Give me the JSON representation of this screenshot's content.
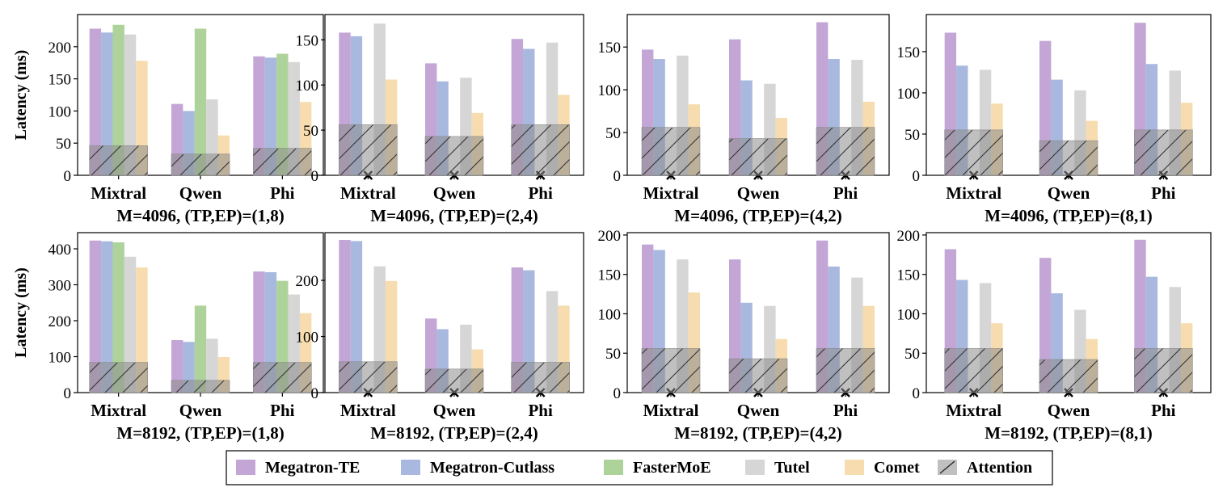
{
  "colors": {
    "Megatron-TE": "#c3a6d6",
    "Megatron-Cutlass": "#a8b8de",
    "FasterMoE": "#aed39a",
    "Tutel": "#d6d6d6",
    "Comet": "#f6dcae",
    "Attention": "#8c8c8c"
  },
  "legend": [
    "Megatron-TE",
    "Megatron-Cutlass",
    "FasterMoE",
    "Tutel",
    "Comet",
    "Attention"
  ],
  "unsupported_marker": "×",
  "chart_data": [
    {
      "type": "bar",
      "xlabel": "M=4096, (TP,EP)=(1,8)",
      "ylabel": "Latency (ms)",
      "ylim": [
        0,
        250
      ],
      "yticks": [
        0,
        50,
        100,
        150,
        200
      ],
      "categories": [
        "Mixtral",
        "Qwen",
        "Phi"
      ],
      "series": [
        {
          "name": "Megatron-TE",
          "values": [
            228,
            111,
            185
          ]
        },
        {
          "name": "Megatron-Cutlass",
          "values": [
            222,
            100,
            183
          ]
        },
        {
          "name": "FasterMoE",
          "values": [
            234,
            228,
            189
          ]
        },
        {
          "name": "Tutel",
          "values": [
            219,
            118,
            176
          ]
        },
        {
          "name": "Comet",
          "values": [
            178,
            62,
            114
          ]
        }
      ],
      "attention": [
        46,
        33,
        42
      ]
    },
    {
      "type": "bar",
      "xlabel": "M=4096, (TP,EP)=(2,4)",
      "ylabel": "",
      "ylim": [
        0,
        178
      ],
      "yticks": [
        0,
        50,
        100,
        150
      ],
      "categories": [
        "Mixtral",
        "Qwen",
        "Phi"
      ],
      "series": [
        {
          "name": "Megatron-TE",
          "values": [
            158,
            124,
            151
          ]
        },
        {
          "name": "Megatron-Cutlass",
          "values": [
            154,
            104,
            140
          ]
        },
        {
          "name": "FasterMoE",
          "values": [
            null,
            null,
            null
          ]
        },
        {
          "name": "Tutel",
          "values": [
            168,
            108,
            147
          ]
        },
        {
          "name": "Comet",
          "values": [
            106,
            69,
            89
          ]
        }
      ],
      "attention": [
        56,
        43,
        56
      ]
    },
    {
      "type": "bar",
      "xlabel": "M=4096, (TP,EP)=(4,2)",
      "ylabel": "",
      "ylim": [
        0,
        188
      ],
      "yticks": [
        0,
        50,
        100,
        150
      ],
      "categories": [
        "Mixtral",
        "Qwen",
        "Phi"
      ],
      "series": [
        {
          "name": "Megatron-TE",
          "values": [
            147,
            159,
            179
          ]
        },
        {
          "name": "Megatron-Cutlass",
          "values": [
            136,
            111,
            136
          ]
        },
        {
          "name": "FasterMoE",
          "values": [
            null,
            null,
            null
          ]
        },
        {
          "name": "Tutel",
          "values": [
            140,
            107,
            135
          ]
        },
        {
          "name": "Comet",
          "values": [
            83,
            67,
            86
          ]
        }
      ],
      "attention": [
        56,
        43,
        56
      ]
    },
    {
      "type": "bar",
      "xlabel": "M=4096, (TP,EP)=(8,1)",
      "ylabel": "",
      "ylim": [
        0,
        195
      ],
      "yticks": [
        0,
        50,
        100,
        150
      ],
      "categories": [
        "Mixtral",
        "Qwen",
        "Phi"
      ],
      "series": [
        {
          "name": "Megatron-TE",
          "values": [
            173,
            163,
            185
          ]
        },
        {
          "name": "Megatron-Cutlass",
          "values": [
            133,
            116,
            135
          ]
        },
        {
          "name": "FasterMoE",
          "values": [
            null,
            null,
            null
          ]
        },
        {
          "name": "Tutel",
          "values": [
            128,
            103,
            127
          ]
        },
        {
          "name": "Comet",
          "values": [
            87,
            66,
            88
          ]
        }
      ],
      "attention": [
        55,
        42,
        55
      ]
    },
    {
      "type": "bar",
      "xlabel": "M=8192, (TP,EP)=(1,8)",
      "ylabel": "Latency (ms)",
      "ylim": [
        0,
        445
      ],
      "yticks": [
        0,
        100,
        200,
        300,
        400
      ],
      "categories": [
        "Mixtral",
        "Qwen",
        "Phi"
      ],
      "series": [
        {
          "name": "Megatron-TE",
          "values": [
            423,
            146,
            337
          ]
        },
        {
          "name": "Megatron-Cutlass",
          "values": [
            421,
            141,
            335
          ]
        },
        {
          "name": "FasterMoE",
          "values": [
            418,
            242,
            311
          ]
        },
        {
          "name": "Tutel",
          "values": [
            378,
            150,
            273
          ]
        },
        {
          "name": "Comet",
          "values": [
            348,
            99,
            221
          ]
        }
      ],
      "attention": [
        84,
        34,
        84
      ]
    },
    {
      "type": "bar",
      "xlabel": "M=8192, (TP,EP)=(2,4)",
      "ylabel": "",
      "ylim": [
        0,
        285
      ],
      "yticks": [
        0,
        100,
        200
      ],
      "categories": [
        "Mixtral",
        "Qwen",
        "Phi"
      ],
      "series": [
        {
          "name": "Megatron-TE",
          "values": [
            272,
            132,
            223
          ]
        },
        {
          "name": "Megatron-Cutlass",
          "values": [
            270,
            113,
            218
          ]
        },
        {
          "name": "FasterMoE",
          "values": [
            null,
            null,
            null
          ]
        },
        {
          "name": "Tutel",
          "values": [
            225,
            121,
            181
          ]
        },
        {
          "name": "Comet",
          "values": [
            199,
            77,
            155
          ]
        }
      ],
      "attention": [
        55,
        42,
        54
      ]
    },
    {
      "type": "bar",
      "xlabel": "M=8192, (TP,EP)=(4,2)",
      "ylabel": "",
      "ylim": [
        0,
        203
      ],
      "yticks": [
        0,
        50,
        100,
        150,
        200
      ],
      "categories": [
        "Mixtral",
        "Qwen",
        "Phi"
      ],
      "series": [
        {
          "name": "Megatron-TE",
          "values": [
            188,
            169,
            193
          ]
        },
        {
          "name": "Megatron-Cutlass",
          "values": [
            181,
            114,
            160
          ]
        },
        {
          "name": "FasterMoE",
          "values": [
            null,
            null,
            null
          ]
        },
        {
          "name": "Tutel",
          "values": [
            169,
            110,
            146
          ]
        },
        {
          "name": "Comet",
          "values": [
            127,
            68,
            110
          ]
        }
      ],
      "attention": [
        56,
        43,
        56
      ]
    },
    {
      "type": "bar",
      "xlabel": "M=8192, (TP,EP)=(8,1)",
      "ylabel": "",
      "ylim": [
        0,
        203
      ],
      "yticks": [
        0,
        50,
        100,
        150,
        200
      ],
      "categories": [
        "Mixtral",
        "Qwen",
        "Phi"
      ],
      "series": [
        {
          "name": "Megatron-TE",
          "values": [
            182,
            171,
            194
          ]
        },
        {
          "name": "Megatron-Cutlass",
          "values": [
            143,
            126,
            147
          ]
        },
        {
          "name": "FasterMoE",
          "values": [
            null,
            null,
            null
          ]
        },
        {
          "name": "Tutel",
          "values": [
            139,
            105,
            134
          ]
        },
        {
          "name": "Comet",
          "values": [
            88,
            68,
            88
          ]
        }
      ],
      "attention": [
        56,
        42,
        56
      ]
    }
  ]
}
